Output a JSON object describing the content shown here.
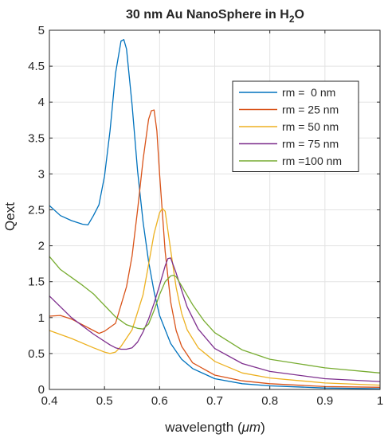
{
  "chart_data": {
    "type": "line",
    "title_main": "30 nm Au NanoSphere in H",
    "title_sub": "2",
    "title_tail": "O",
    "xlabel_prefix": "wavelength (",
    "xlabel_unit": "μm",
    "xlabel_suffix": ")",
    "ylabel": "Qext",
    "xlim": [
      0.4,
      1.0
    ],
    "ylim": [
      0,
      5
    ],
    "x_ticks": [
      0.4,
      0.5,
      0.6,
      0.7,
      0.8,
      0.9,
      1.0
    ],
    "x_tick_labels": [
      "0.4",
      "0.5",
      "0.6",
      "0.7",
      "0.8",
      "0.9",
      "1"
    ],
    "y_ticks": [
      0,
      0.5,
      1,
      1.5,
      2,
      2.5,
      3,
      3.5,
      4,
      4.5,
      5
    ],
    "y_tick_labels": [
      "0",
      "0.5",
      "1",
      "1.5",
      "2",
      "2.5",
      "3",
      "3.5",
      "4",
      "4.5",
      "5"
    ],
    "grid": true,
    "legend_position": "top-right",
    "series": [
      {
        "name": "rm =  0 nm",
        "color": "#0072BD",
        "x": [
          0.4,
          0.42,
          0.44,
          0.46,
          0.47,
          0.48,
          0.49,
          0.5,
          0.51,
          0.52,
          0.53,
          0.535,
          0.54,
          0.55,
          0.56,
          0.57,
          0.58,
          0.59,
          0.6,
          0.62,
          0.64,
          0.66,
          0.7,
          0.75,
          0.8,
          0.9,
          1.0
        ],
        "y": [
          2.56,
          2.42,
          2.35,
          2.3,
          2.29,
          2.42,
          2.57,
          2.97,
          3.6,
          4.4,
          4.85,
          4.87,
          4.74,
          3.96,
          3.04,
          2.33,
          1.78,
          1.36,
          1.03,
          0.64,
          0.42,
          0.29,
          0.15,
          0.08,
          0.05,
          0.02,
          0.01
        ]
      },
      {
        "name": "rm = 25 nm",
        "color": "#D95319",
        "x": [
          0.4,
          0.42,
          0.44,
          0.46,
          0.48,
          0.49,
          0.5,
          0.52,
          0.54,
          0.55,
          0.56,
          0.57,
          0.58,
          0.585,
          0.59,
          0.595,
          0.6,
          0.61,
          0.62,
          0.63,
          0.64,
          0.66,
          0.7,
          0.75,
          0.8,
          0.9,
          1.0
        ],
        "y": [
          1.02,
          1.03,
          0.98,
          0.9,
          0.82,
          0.78,
          0.81,
          0.92,
          1.43,
          1.86,
          2.5,
          3.2,
          3.76,
          3.88,
          3.89,
          3.6,
          3.0,
          1.92,
          1.22,
          0.82,
          0.6,
          0.37,
          0.2,
          0.12,
          0.08,
          0.04,
          0.03
        ]
      },
      {
        "name": "rm = 50 nm",
        "color": "#EDB120",
        "x": [
          0.4,
          0.44,
          0.48,
          0.5,
          0.51,
          0.52,
          0.53,
          0.55,
          0.57,
          0.58,
          0.59,
          0.6,
          0.605,
          0.61,
          0.62,
          0.63,
          0.64,
          0.65,
          0.67,
          0.7,
          0.75,
          0.8,
          0.9,
          1.0
        ],
        "y": [
          0.82,
          0.71,
          0.58,
          0.52,
          0.5,
          0.52,
          0.6,
          0.83,
          1.32,
          1.74,
          2.17,
          2.46,
          2.52,
          2.48,
          1.94,
          1.42,
          1.06,
          0.83,
          0.58,
          0.39,
          0.23,
          0.16,
          0.09,
          0.06
        ]
      },
      {
        "name": "rm = 75 nm",
        "color": "#7E2F8E",
        "x": [
          0.4,
          0.44,
          0.48,
          0.51,
          0.52,
          0.53,
          0.54,
          0.55,
          0.56,
          0.57,
          0.58,
          0.59,
          0.6,
          0.61,
          0.615,
          0.62,
          0.63,
          0.64,
          0.65,
          0.67,
          0.7,
          0.75,
          0.8,
          0.9,
          1.0
        ],
        "y": [
          1.3,
          1.0,
          0.77,
          0.62,
          0.58,
          0.56,
          0.56,
          0.58,
          0.66,
          0.8,
          0.98,
          1.2,
          1.45,
          1.72,
          1.82,
          1.83,
          1.62,
          1.38,
          1.15,
          0.84,
          0.57,
          0.36,
          0.25,
          0.15,
          0.11
        ]
      },
      {
        "name": "rm =100 nm",
        "color": "#77AC30",
        "x": [
          0.4,
          0.42,
          0.44,
          0.46,
          0.48,
          0.5,
          0.52,
          0.54,
          0.56,
          0.57,
          0.58,
          0.59,
          0.6,
          0.61,
          0.62,
          0.625,
          0.63,
          0.64,
          0.66,
          0.68,
          0.7,
          0.75,
          0.8,
          0.9,
          1.0
        ],
        "y": [
          1.85,
          1.67,
          1.56,
          1.45,
          1.33,
          1.17,
          1.01,
          0.9,
          0.85,
          0.84,
          0.91,
          1.1,
          1.32,
          1.5,
          1.58,
          1.59,
          1.57,
          1.44,
          1.18,
          0.96,
          0.79,
          0.55,
          0.42,
          0.3,
          0.23
        ]
      }
    ]
  }
}
